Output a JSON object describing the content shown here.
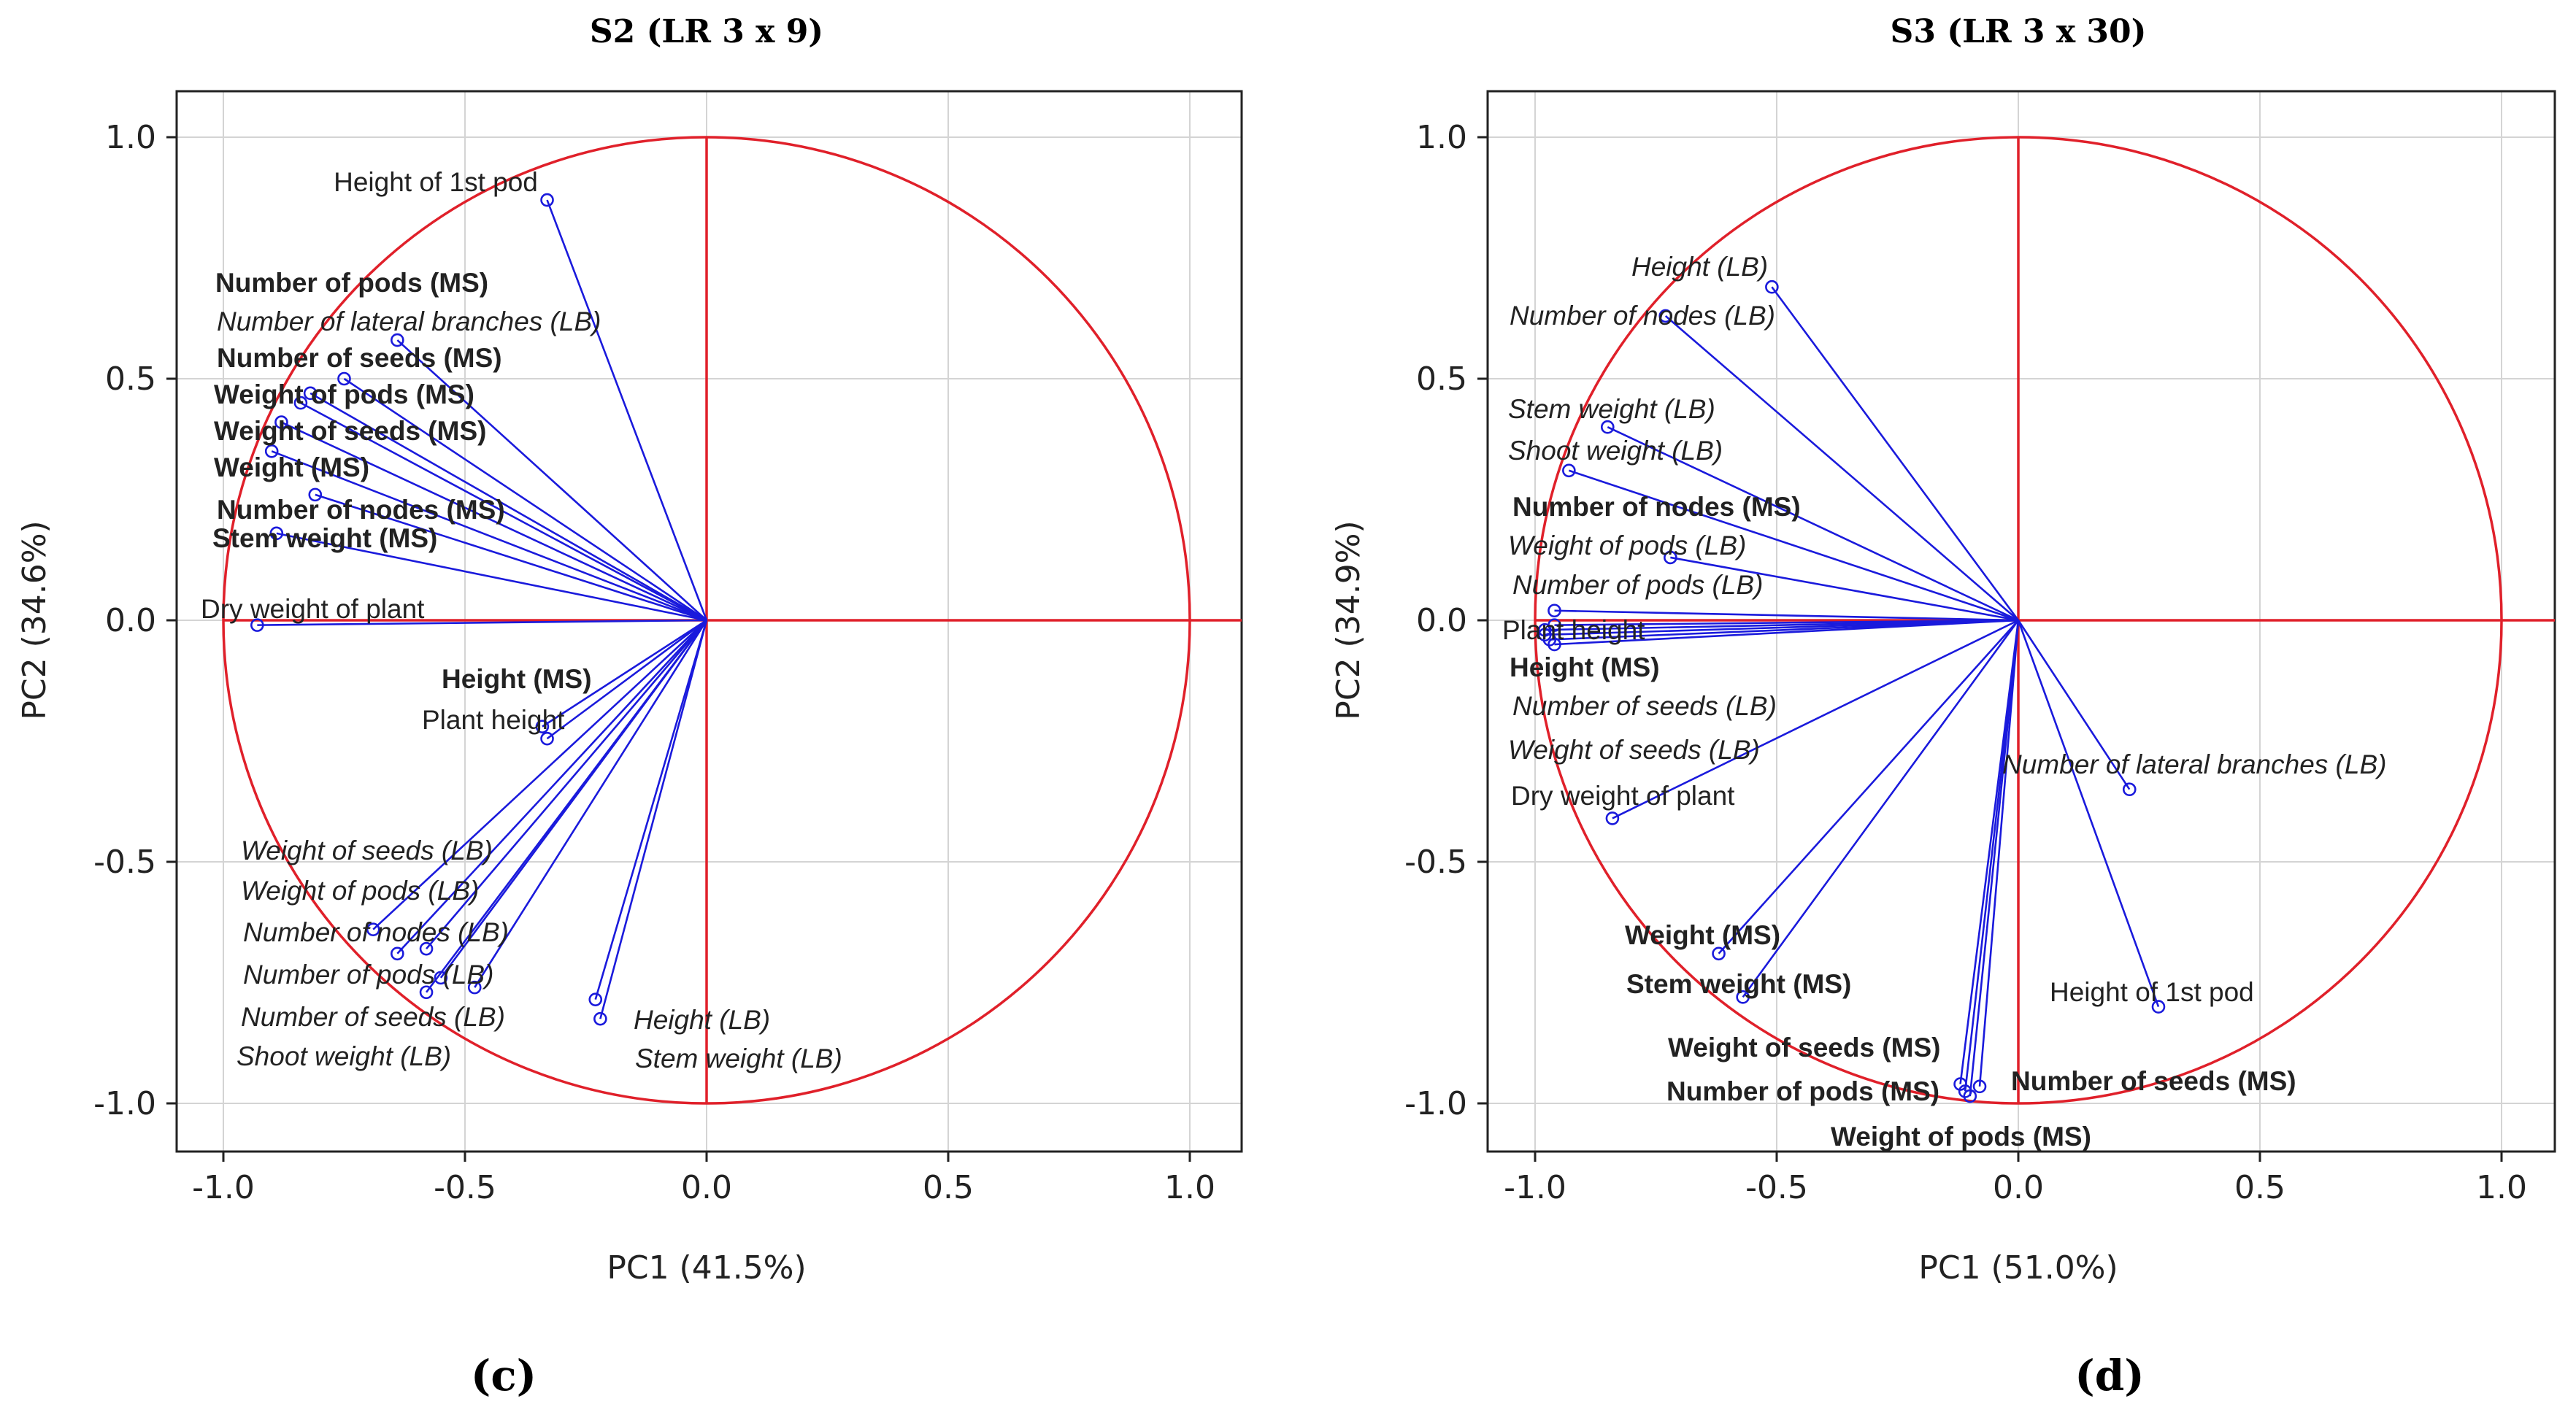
{
  "chart_data": [
    {
      "type": "scatter",
      "chart_kind": "PCA loading plot (correlation circle)",
      "title": "S2 (LR 3 x 9)",
      "panel_label": "(c)",
      "xlabel": "PC1 (41.5%)",
      "ylabel": "PC2 (34.6%)",
      "xlim": [
        -1.1,
        1.1
      ],
      "ylim": [
        -1.1,
        1.1
      ],
      "xticks": [
        "-1.0",
        "-0.5",
        "0.0",
        "0.5",
        "1.0"
      ],
      "yticks": [
        "-1.0",
        "-0.5",
        "0.0",
        "0.5",
        "1.0"
      ],
      "grid": true,
      "unit_circle_color": "#e0202a",
      "vector_color": "#1a1adc",
      "points": [
        {
          "label": "Height of 1st pod",
          "x": -0.33,
          "y": 0.87,
          "style": "normal"
        },
        {
          "label": "Number of pods (MS)",
          "x": -0.75,
          "y": 0.5,
          "style": "bold"
        },
        {
          "label": "Number of lateral branches (LB)",
          "x": -0.64,
          "y": 0.58,
          "style": "italic"
        },
        {
          "label": "Number of seeds (MS)",
          "x": -0.82,
          "y": 0.47,
          "style": "bold"
        },
        {
          "label": "Weight of pods (MS)",
          "x": -0.84,
          "y": 0.45,
          "style": "bold"
        },
        {
          "label": "Weight of seeds (MS)",
          "x": -0.88,
          "y": 0.41,
          "style": "bold"
        },
        {
          "label": "Weight (MS)",
          "x": -0.9,
          "y": 0.35,
          "style": "bold"
        },
        {
          "label": "Number of nodes (MS)",
          "x": -0.81,
          "y": 0.26,
          "style": "bold"
        },
        {
          "label": "Stem weight (MS)",
          "x": -0.89,
          "y": 0.18,
          "style": "bold"
        },
        {
          "label": "Dry weight of plant",
          "x": -0.93,
          "y": -0.01,
          "style": "normal"
        },
        {
          "label": "Height (MS)",
          "x": -0.34,
          "y": -0.22,
          "style": "bold"
        },
        {
          "label": "Plant height",
          "x": -0.33,
          "y": -0.245,
          "style": "normal"
        },
        {
          "label": "Weight of seeds (LB)",
          "x": -0.69,
          "y": -0.64,
          "style": "italic"
        },
        {
          "label": "Weight of pods (LB)",
          "x": -0.64,
          "y": -0.69,
          "style": "italic"
        },
        {
          "label": "Number of nodes (LB)",
          "x": -0.58,
          "y": -0.68,
          "style": "italic"
        },
        {
          "label": "Number of pods (LB)",
          "x": -0.55,
          "y": -0.74,
          "style": "italic"
        },
        {
          "label": "Number of seeds (LB)",
          "x": -0.58,
          "y": -0.77,
          "style": "italic"
        },
        {
          "label": "Shoot weight (LB)",
          "x": -0.48,
          "y": -0.76,
          "style": "italic"
        },
        {
          "label": "Height (LB)",
          "x": -0.23,
          "y": -0.785,
          "style": "italic"
        },
        {
          "label": "Stem weight (LB)",
          "x": -0.22,
          "y": -0.825,
          "style": "italic"
        }
      ]
    },
    {
      "type": "scatter",
      "chart_kind": "PCA loading plot (correlation circle)",
      "title": "S3 (LR 3 x 30)",
      "panel_label": "(d)",
      "xlabel": "PC1 (51.0%)",
      "ylabel": "PC2 (34.9%)",
      "xlim": [
        -1.1,
        1.1
      ],
      "ylim": [
        -1.1,
        1.1
      ],
      "xticks": [
        "-1.0",
        "-0.5",
        "0.0",
        "0.5",
        "1.0"
      ],
      "yticks": [
        "-1.0",
        "-0.5",
        "0.0",
        "0.5",
        "1.0"
      ],
      "grid": true,
      "unit_circle_color": "#e0202a",
      "vector_color": "#1a1adc",
      "points": [
        {
          "label": "Height (LB)",
          "x": -0.51,
          "y": 0.69,
          "style": "italic"
        },
        {
          "label": "Number of nodes (LB)",
          "x": -0.73,
          "y": 0.63,
          "style": "italic"
        },
        {
          "label": "Stem weight (LB)",
          "x": -0.85,
          "y": 0.4,
          "style": "italic"
        },
        {
          "label": "Shoot weight (LB)",
          "x": -0.93,
          "y": 0.31,
          "style": "italic"
        },
        {
          "label": "Number of nodes (MS)",
          "x": -0.96,
          "y": 0.02,
          "style": "bold"
        },
        {
          "label": "Weight of pods (LB)",
          "x": -0.72,
          "y": 0.13,
          "style": "italic"
        },
        {
          "label": "Number of pods (LB)",
          "x": -0.96,
          "y": -0.01,
          "style": "italic"
        },
        {
          "label": "Plant height",
          "x": -0.98,
          "y": -0.02,
          "style": "normal"
        },
        {
          "label": "Height (MS)",
          "x": -0.97,
          "y": -0.04,
          "style": "bold"
        },
        {
          "label": "Number of seeds (LB)",
          "x": -0.98,
          "y": -0.03,
          "style": "italic"
        },
        {
          "label": "Weight of seeds (LB)",
          "x": -0.96,
          "y": -0.05,
          "style": "italic"
        },
        {
          "label": "Dry weight of plant",
          "x": -0.84,
          "y": -0.41,
          "style": "normal"
        },
        {
          "label": "Number of lateral branches (LB)",
          "x": 0.23,
          "y": -0.35,
          "style": "italic"
        },
        {
          "label": "Weight (MS)",
          "x": -0.62,
          "y": -0.69,
          "style": "bold"
        },
        {
          "label": "Stem weight (MS)",
          "x": -0.57,
          "y": -0.78,
          "style": "bold"
        },
        {
          "label": "Height of 1st pod",
          "x": 0.29,
          "y": -0.8,
          "style": "normal"
        },
        {
          "label": "Weight of seeds (MS)",
          "x": -0.12,
          "y": -0.96,
          "style": "bold"
        },
        {
          "label": "Number of pods (MS)",
          "x": -0.11,
          "y": -0.975,
          "style": "bold"
        },
        {
          "label": "Number of seeds (MS)",
          "x": -0.08,
          "y": -0.965,
          "style": "bold"
        },
        {
          "label": "Weight of pods (MS)",
          "x": -0.1,
          "y": -0.985,
          "style": "bold"
        }
      ]
    }
  ]
}
